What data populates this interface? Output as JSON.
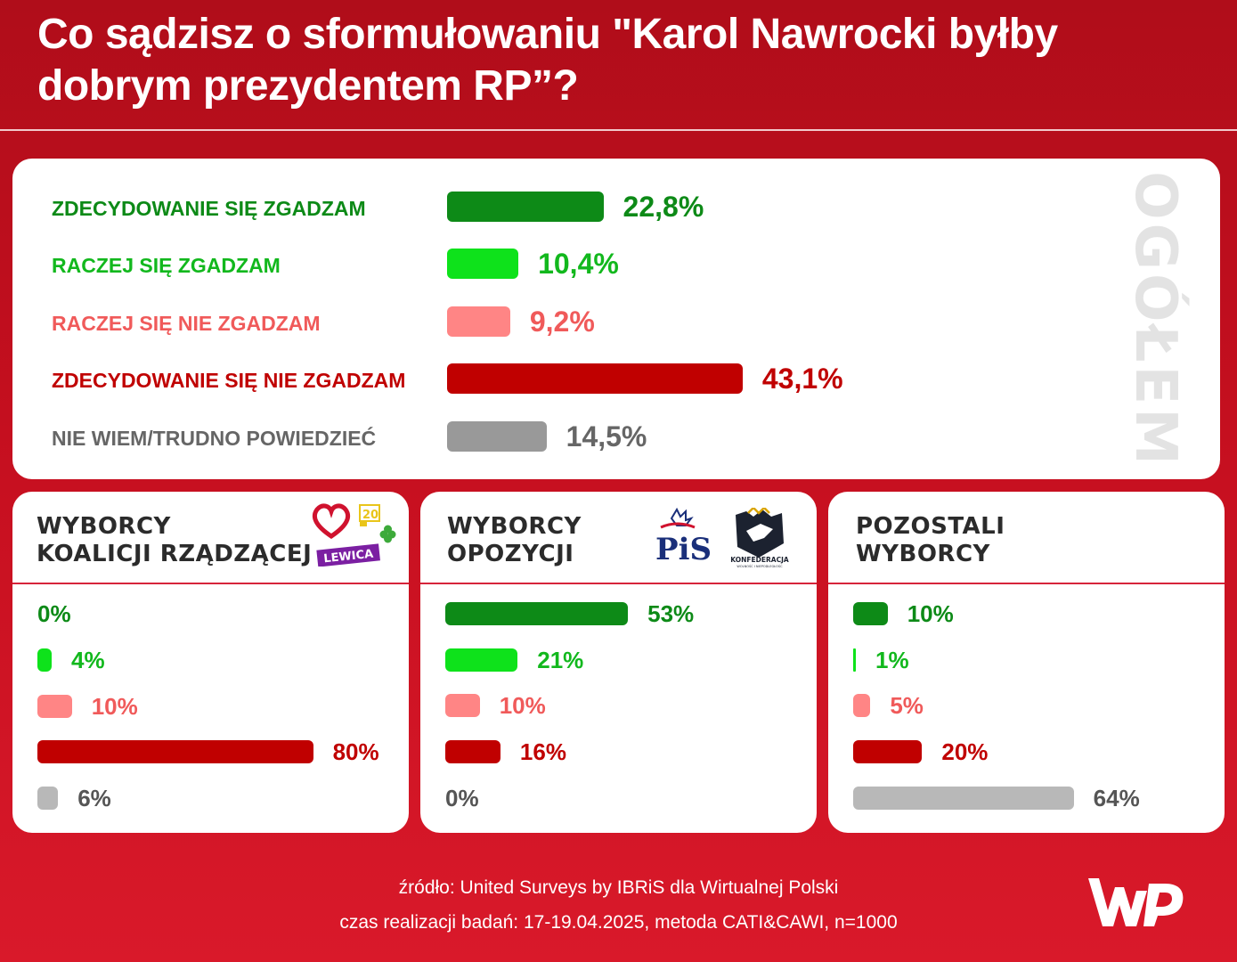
{
  "title": "Co sądzisz o sformułowaniu \"Karol Nawrocki byłby dobrym prezydentem RP”?",
  "colors": {
    "dark_green": "#0d8a17",
    "light_green": "#0ee21b",
    "light_red": "#ff8585",
    "dark_red": "#c00000",
    "grey": "#999999",
    "light_grey": "#b8b8b8"
  },
  "overall": {
    "side_label": "OGÓŁEM",
    "rows": [
      {
        "label": "ZDECYDOWANIE SIĘ ZGADZAM",
        "value_text": "22,8%"
      },
      {
        "label": "RACZEJ SIĘ ZGADZAM",
        "value_text": "10,4%"
      },
      {
        "label": "RACZEJ SIĘ NIE ZGADZAM",
        "value_text": "9,2%"
      },
      {
        "label": "ZDECYDOWANIE SIĘ NIE ZGADZAM",
        "value_text": "43,1%"
      },
      {
        "label": "NIE WIEM/TRUDNO POWIEDZIEĆ",
        "value_text": "14,5%"
      }
    ]
  },
  "groups": [
    {
      "title_line1": "WYBORCY",
      "title_line2": "KOALICJI RZĄDZĄCEJ",
      "logo_text": "LEWICA",
      "logo_badge": "20",
      "rows": [
        {
          "value_text": "0%"
        },
        {
          "value_text": "4%"
        },
        {
          "value_text": "10%"
        },
        {
          "value_text": "80%"
        },
        {
          "value_text": "6%"
        }
      ]
    },
    {
      "title_line1": "WYBORCY",
      "title_line2": "OPOZYCJI",
      "logo_pis": "PiS",
      "logo_konf": "KONFEDERACJA",
      "logo_konf_sub": "WOLNOŚĆ I NIEPODLEGŁOŚĆ",
      "rows": [
        {
          "value_text": "53%"
        },
        {
          "value_text": "21%"
        },
        {
          "value_text": "10%"
        },
        {
          "value_text": "16%"
        },
        {
          "value_text": "0%"
        }
      ]
    },
    {
      "title_line1": "POZOSTALI",
      "title_line2": "WYBORCY",
      "rows": [
        {
          "value_text": "10%"
        },
        {
          "value_text": "1%"
        },
        {
          "value_text": "5%"
        },
        {
          "value_text": "20%"
        },
        {
          "value_text": "64%"
        }
      ]
    }
  ],
  "footer": {
    "source": "źródło: United Surveys by IBRiS dla Wirtualnej Polski",
    "method": "czas realizacji badań: 17-19.04.2025, metoda CATI&CAWI, n=1000"
  },
  "chart_data": [
    {
      "type": "bar",
      "orientation": "horizontal",
      "title": "OGÓŁEM",
      "categories": [
        "ZDECYDOWANIE SIĘ ZGADZAM",
        "RACZEJ SIĘ ZGADZAM",
        "RACZEJ SIĘ NIE ZGADZAM",
        "ZDECYDOWANIE SIĘ NIE ZGADZAM",
        "NIE WIEM/TRUDNO POWIEDZIEĆ"
      ],
      "values": [
        22.8,
        10.4,
        9.2,
        43.1,
        14.5
      ],
      "unit": "%"
    },
    {
      "type": "bar",
      "orientation": "horizontal",
      "title": "WYBORCY KOALICJI RZĄDZĄCEJ",
      "categories": [
        "ZDECYDOWANIE SIĘ ZGADZAM",
        "RACZEJ SIĘ ZGADZAM",
        "RACZEJ SIĘ NIE ZGADZAM",
        "ZDECYDOWANIE SIĘ NIE ZGADZAM",
        "NIE WIEM/TRUDNO POWIEDZIEĆ"
      ],
      "values": [
        0,
        4,
        10,
        80,
        6
      ],
      "unit": "%"
    },
    {
      "type": "bar",
      "orientation": "horizontal",
      "title": "WYBORCY OPOZYCJI",
      "categories": [
        "ZDECYDOWANIE SIĘ ZGADZAM",
        "RACZEJ SIĘ ZGADZAM",
        "RACZEJ SIĘ NIE ZGADZAM",
        "ZDECYDOWANIE SIĘ NIE ZGADZAM",
        "NIE WIEM/TRUDNO POWIEDZIEĆ"
      ],
      "values": [
        53,
        21,
        10,
        16,
        0
      ],
      "unit": "%"
    },
    {
      "type": "bar",
      "orientation": "horizontal",
      "title": "POZOSTALI WYBORCY",
      "categories": [
        "ZDECYDOWANIE SIĘ ZGADZAM",
        "RACZEJ SIĘ ZGADZAM",
        "RACZEJ SIĘ NIE ZGADZAM",
        "ZDECYDOWANIE SIĘ NIE ZGADZAM",
        "NIE WIEM/TRUDNO POWIEDZIEĆ"
      ],
      "values": [
        10,
        1,
        5,
        20,
        64
      ],
      "unit": "%"
    }
  ]
}
